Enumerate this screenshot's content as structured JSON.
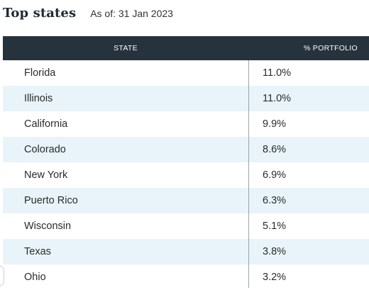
{
  "header": {
    "title": "Top states",
    "as_of": "As of: 31 Jan 2023"
  },
  "table": {
    "columns": [
      "STATE",
      "% PORTFOLIO"
    ],
    "rows": [
      {
        "state": "Florida",
        "pct": "11.0%"
      },
      {
        "state": "Illinois",
        "pct": "11.0%"
      },
      {
        "state": "California",
        "pct": "9.9%"
      },
      {
        "state": "Colorado",
        "pct": "8.6%"
      },
      {
        "state": "New York",
        "pct": "6.9%"
      },
      {
        "state": "Puerto Rico",
        "pct": "6.3%"
      },
      {
        "state": "Wisconsin",
        "pct": "5.1%"
      },
      {
        "state": "Texas",
        "pct": "3.8%"
      },
      {
        "state": "Ohio",
        "pct": "3.2%"
      }
    ]
  },
  "colors": {
    "header_bg": "#26333d",
    "alt_row_bg": "#e8f4f9"
  }
}
